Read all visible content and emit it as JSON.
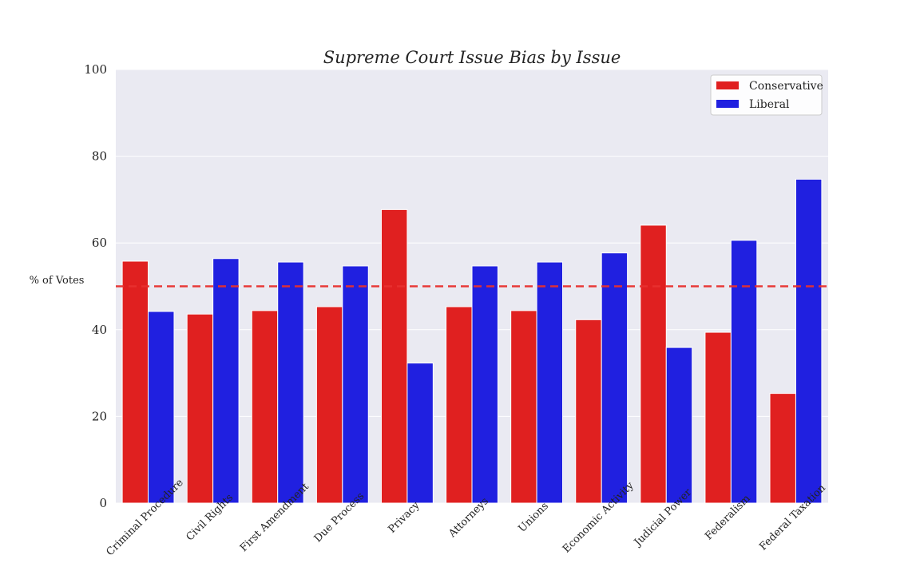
{
  "chart_data": {
    "type": "bar",
    "title": "Supreme Court Issue Bias by Issue",
    "xlabel": "",
    "ylabel": "% of Votes",
    "ylim": [
      0,
      100
    ],
    "yticks": [
      0,
      20,
      40,
      60,
      80,
      100
    ],
    "grid": true,
    "legend_position": "top-right",
    "reference_line": {
      "y": 50,
      "style": "dashed",
      "color": "#e8302f"
    },
    "categories": [
      "Criminal Procedure",
      "Civil Rights",
      "First Amendment",
      "Due Process",
      "Privacy",
      "Attorneys",
      "Unions",
      "Economic Activity",
      "Judicial Power",
      "Federalism",
      "Federal Taxation"
    ],
    "series": [
      {
        "name": "Conservative",
        "color": "#e02020",
        "values": [
          55.8,
          43.6,
          44.4,
          45.3,
          67.7,
          45.3,
          44.4,
          42.3,
          64.1,
          39.4,
          25.3
        ]
      },
      {
        "name": "Liberal",
        "color": "#2020e0",
        "values": [
          44.2,
          56.4,
          55.6,
          54.7,
          32.3,
          54.7,
          55.6,
          57.7,
          35.9,
          60.6,
          74.7
        ]
      }
    ],
    "colors": {
      "plot_background": "#eaeaf2",
      "grid": "#ffffff"
    }
  }
}
